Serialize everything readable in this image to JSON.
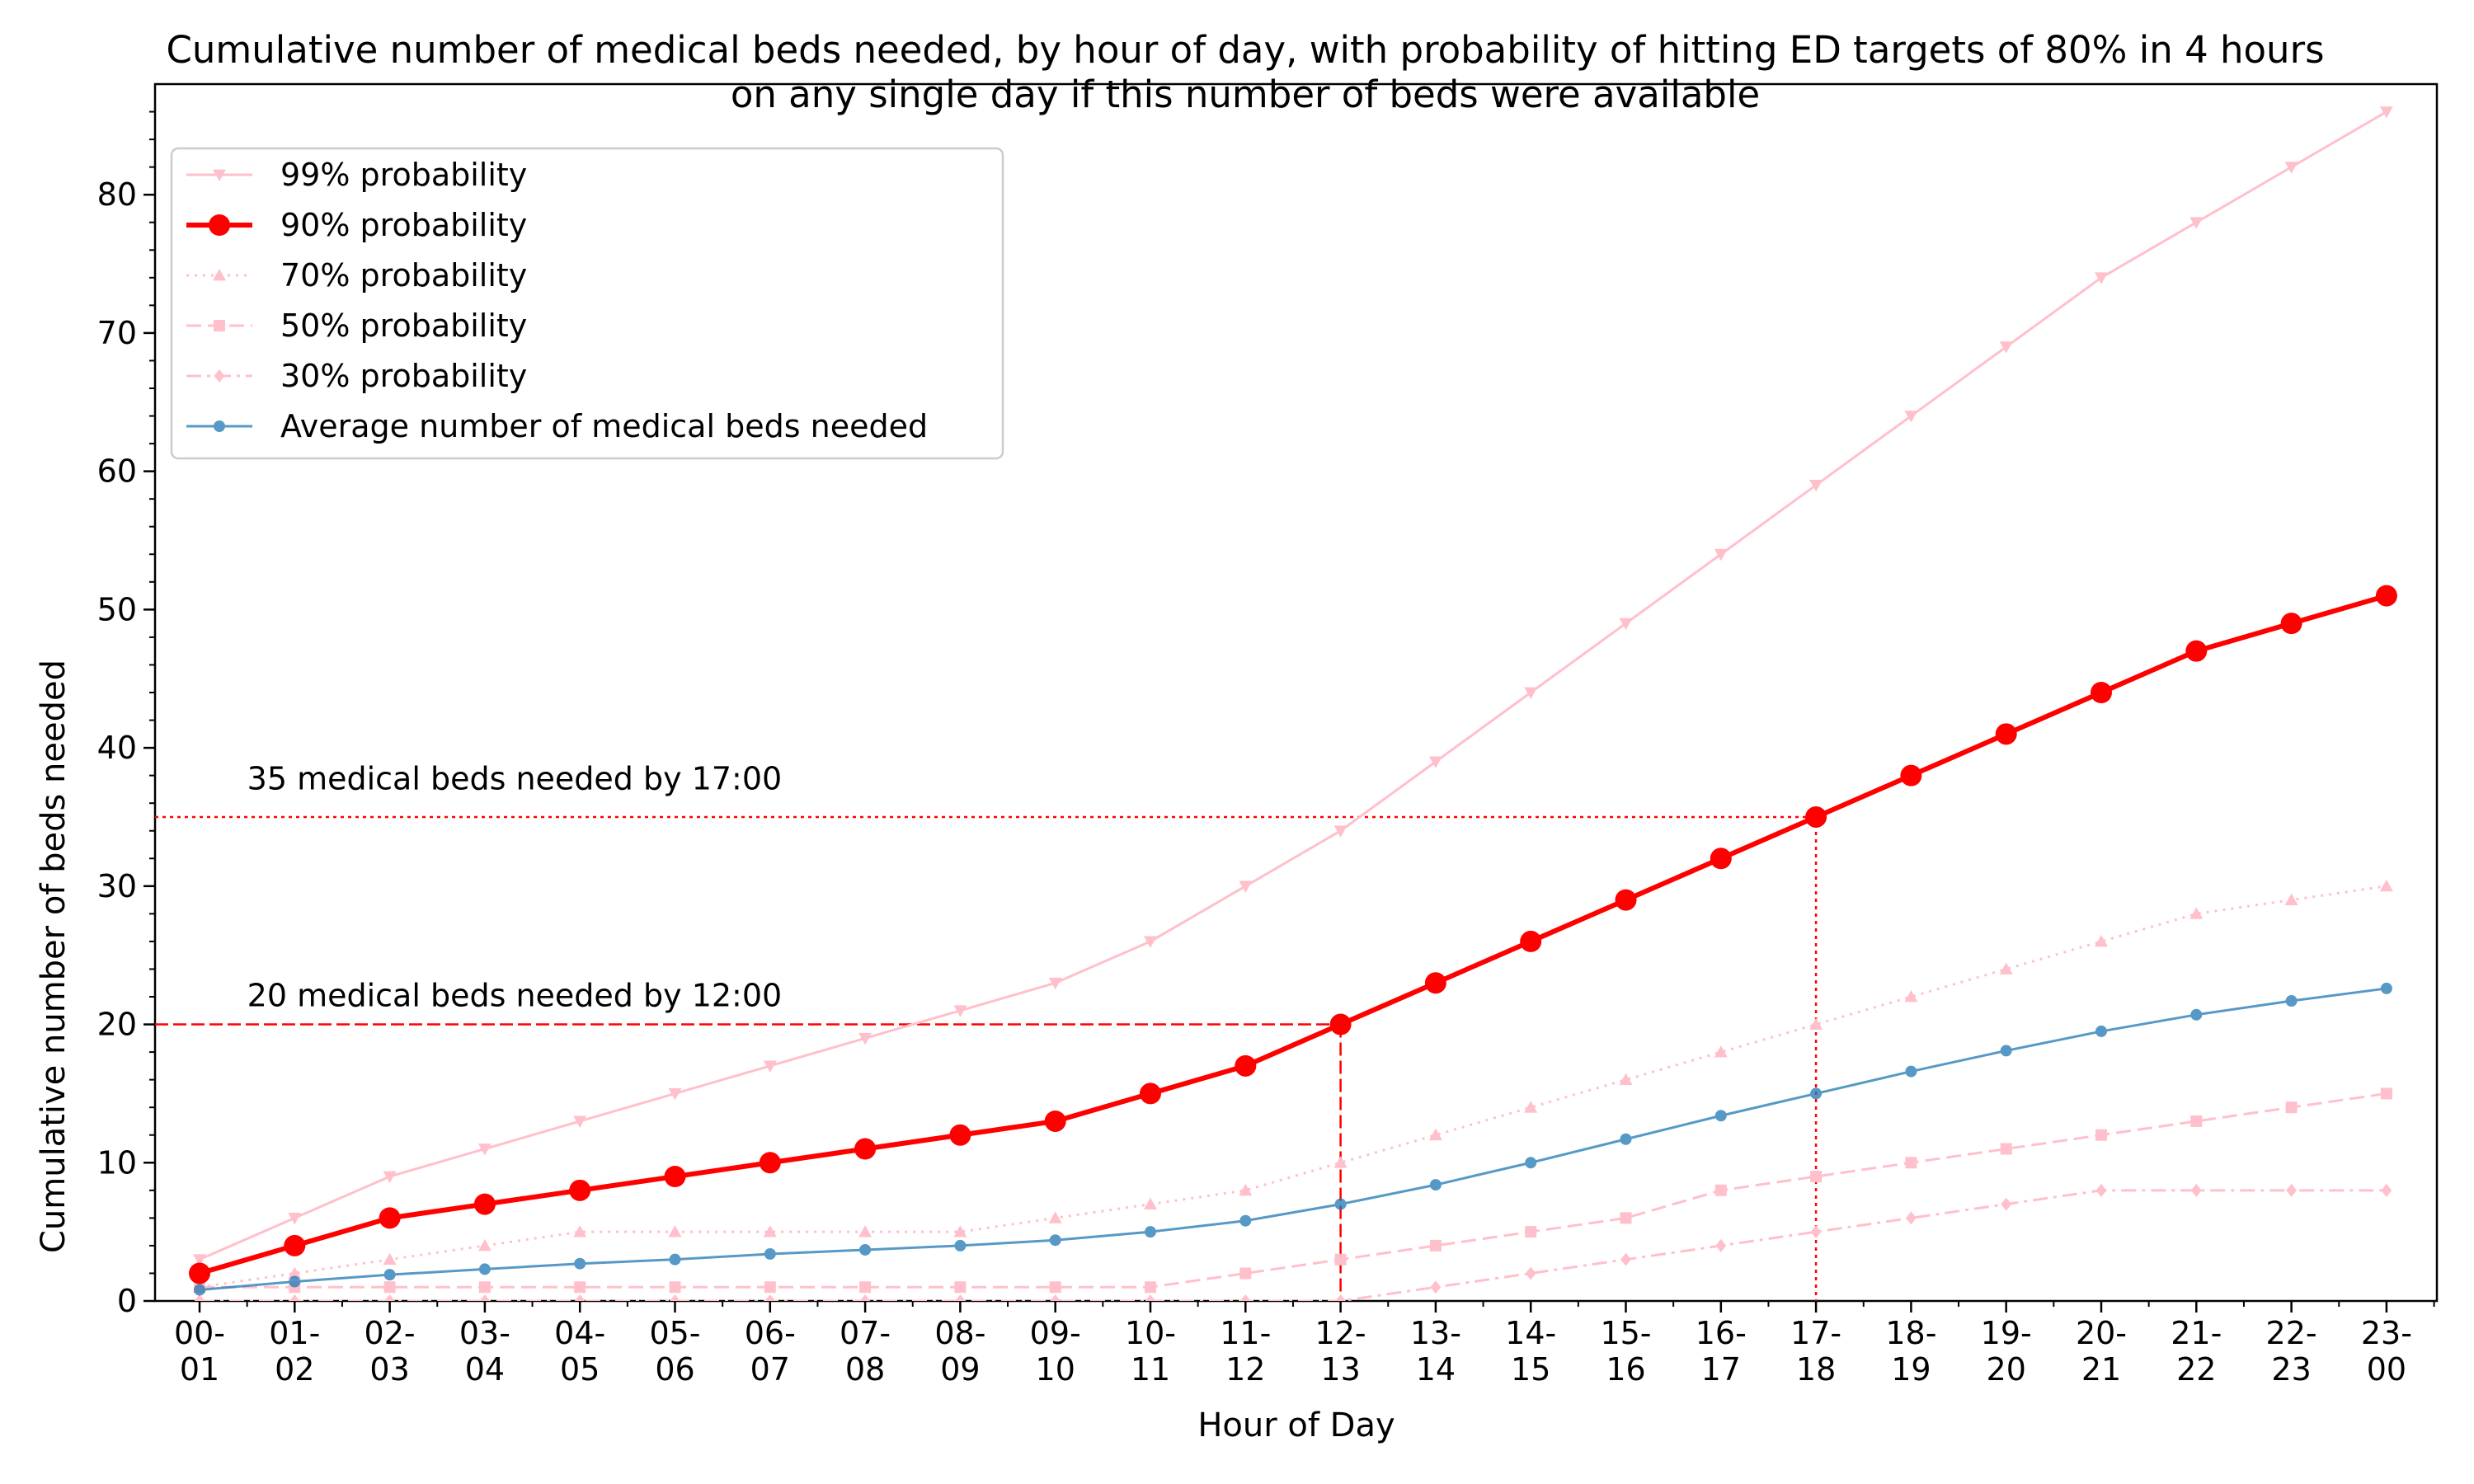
{
  "chart_data": {
    "type": "line",
    "title_lines": [
      "Cumulative number of medical beds needed, by hour of day, with probability of hitting ED targets of 80% in 4 hours",
      "on any single day if this number of beds were available"
    ],
    "xlabel": "Hour of Day",
    "ylabel": "Cumulative number of beds needed",
    "ylim": [
      0,
      88
    ],
    "yticks": [
      0,
      10,
      20,
      30,
      40,
      50,
      60,
      70,
      80
    ],
    "categories": [
      [
        "00-",
        "01"
      ],
      [
        "01-",
        "02"
      ],
      [
        "02-",
        "03"
      ],
      [
        "03-",
        "04"
      ],
      [
        "04-",
        "05"
      ],
      [
        "05-",
        "06"
      ],
      [
        "06-",
        "07"
      ],
      [
        "07-",
        "08"
      ],
      [
        "08-",
        "09"
      ],
      [
        "09-",
        "10"
      ],
      [
        "10-",
        "11"
      ],
      [
        "11-",
        "12"
      ],
      [
        "12-",
        "13"
      ],
      [
        "13-",
        "14"
      ],
      [
        "14-",
        "15"
      ],
      [
        "15-",
        "16"
      ],
      [
        "16-",
        "17"
      ],
      [
        "17-",
        "18"
      ],
      [
        "18-",
        "19"
      ],
      [
        "19-",
        "20"
      ],
      [
        "20-",
        "21"
      ],
      [
        "21-",
        "22"
      ],
      [
        "22-",
        "23"
      ],
      [
        "23-",
        "00"
      ]
    ],
    "legend_position": "upper-left",
    "series": [
      {
        "name": "99% probability",
        "color": "#ffc0cb",
        "marker": "triangle-down",
        "dash": "solid",
        "width": 3,
        "marker_size": 8,
        "values": [
          3,
          6,
          9,
          11,
          13,
          15,
          17,
          19,
          21,
          23,
          26,
          30,
          34,
          39,
          44,
          49,
          54,
          59,
          64,
          69,
          74,
          78,
          82,
          86
        ]
      },
      {
        "name": "90% probability",
        "color": "#ff0000",
        "marker": "circle",
        "dash": "solid",
        "width": 6,
        "marker_size": 13,
        "values": [
          2,
          4,
          6,
          7,
          8,
          9,
          10,
          11,
          12,
          13,
          15,
          17,
          20,
          23,
          26,
          29,
          32,
          35,
          38,
          41,
          44,
          47,
          49,
          51
        ]
      },
      {
        "name": "70% probability",
        "color": "#ffc0cb",
        "marker": "triangle-up",
        "dash": "dotted",
        "width": 3,
        "marker_size": 8,
        "values": [
          1,
          2,
          3,
          4,
          5,
          5,
          5,
          5,
          5,
          6,
          7,
          8,
          10,
          12,
          14,
          16,
          18,
          20,
          22,
          24,
          26,
          28,
          29,
          30
        ]
      },
      {
        "name": "50% probability",
        "color": "#ffc0cb",
        "marker": "square",
        "dash": "dashed",
        "width": 3,
        "marker_size": 7,
        "values": [
          1,
          1,
          1,
          1,
          1,
          1,
          1,
          1,
          1,
          1,
          1,
          2,
          3,
          4,
          5,
          6,
          8,
          9,
          10,
          11,
          12,
          13,
          14,
          15
        ]
      },
      {
        "name": "30% probability",
        "color": "#ffc0cb",
        "marker": "diamond",
        "dash": "dashdot",
        "width": 3,
        "marker_size": 8,
        "values": [
          0,
          0,
          0,
          0,
          0,
          0,
          0,
          0,
          0,
          0,
          0,
          0,
          0,
          1,
          2,
          3,
          4,
          5,
          6,
          7,
          8,
          8,
          8,
          8
        ]
      },
      {
        "name": "Average number of medical beds needed",
        "color": "#1f77b4",
        "marker": "circle",
        "dash": "solid",
        "width": 3,
        "marker_size": 7,
        "alpha": 0.75,
        "values": [
          0.8,
          1.4,
          1.9,
          2.3,
          2.7,
          3.0,
          3.4,
          3.7,
          4.0,
          4.4,
          5.0,
          5.8,
          7.0,
          8.4,
          10.0,
          11.7,
          13.4,
          15.0,
          16.6,
          18.1,
          19.5,
          20.7,
          21.7,
          22.6
        ]
      }
    ],
    "annotations": [
      {
        "text": "35 medical beds needed by 17:00",
        "label_x": 0.5,
        "label_y": 37,
        "y": 35,
        "x_index": 17,
        "style": "dotted"
      },
      {
        "text": "20 medical beds needed by 12:00",
        "label_x": 0.5,
        "label_y": 21.3,
        "y": 20,
        "x_index": 12,
        "style": "dashed"
      }
    ]
  }
}
